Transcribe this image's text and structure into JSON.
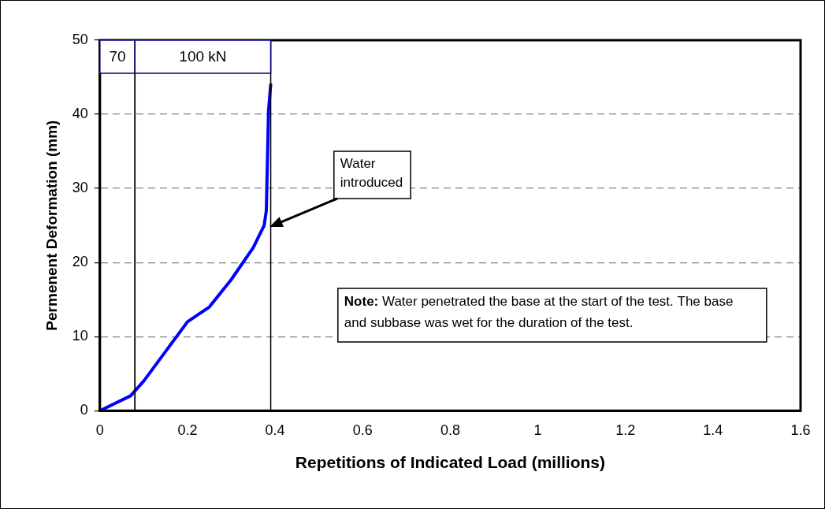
{
  "chart_data": {
    "type": "line",
    "xlabel": "Repetitions of Indicated Load (millions)",
    "ylabel": "Permenent Deformation (mm)",
    "x": [
      0,
      0.07,
      0.1,
      0.2,
      0.25,
      0.3,
      0.35,
      0.375,
      0.38,
      0.385,
      0.39
    ],
    "series": [
      {
        "color": "#0000ff",
        "values": [
          0,
          2,
          4,
          12,
          14,
          17.7,
          22,
          25,
          27,
          40.5,
          44
        ]
      }
    ],
    "xlim": [
      0,
      1.6
    ],
    "xticks": [
      0,
      0.2,
      0.4,
      0.6,
      0.8,
      1,
      1.2,
      1.4,
      1.6
    ],
    "ylim": [
      0,
      50
    ],
    "yticks": [
      0,
      10,
      20,
      30,
      40,
      50
    ],
    "grid": "y",
    "legend": false,
    "marker": "none",
    "line_style": "solid",
    "bands": [
      {
        "axis": "x",
        "from": 0,
        "to": 0.08,
        "label": "70"
      },
      {
        "axis": "x",
        "from": 0.08,
        "to": 0.39,
        "label": "100 kN"
      }
    ],
    "annotations": [
      "Water introduced",
      "Note: Water penetrated the base at the start of the test. The base and subbase was wet for the duration of the test."
    ]
  }
}
